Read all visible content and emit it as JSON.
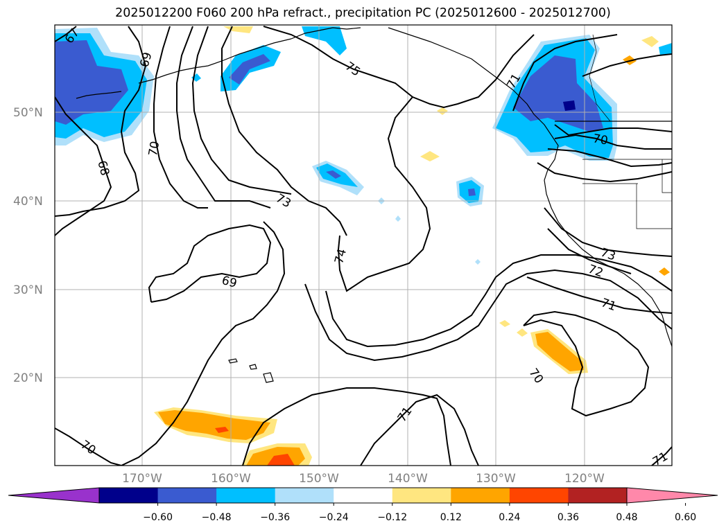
{
  "title": "2025012200 F060 200 hPa refract., precipitation PC (2025012600 - 2025012700)",
  "lat_labels": [
    "50°N",
    "40°N",
    "30°N",
    "20°N"
  ],
  "lon_labels": [
    "170°W",
    "160°W",
    "150°W",
    "140°W",
    "130°W",
    "120°W"
  ],
  "contour_labels": [
    "67",
    "69",
    "68",
    "70",
    "75",
    "71",
    "73",
    "74",
    "69",
    "70",
    "73",
    "72",
    "71",
    "70",
    "71",
    "70",
    "71"
  ],
  "colorbar": {
    "ticks": [
      "−0.60",
      "−0.48",
      "−0.36",
      "−0.24",
      "−0.12",
      "0.12",
      "0.24",
      "0.36",
      "0.48",
      "0.60"
    ],
    "colors": [
      "#9932cc",
      "#00008b",
      "#3a5bd0",
      "#00bfff",
      "#b0e0fa",
      "#ffffff",
      "#ffe680",
      "#ffa500",
      "#ff4500",
      "#b22222",
      "#ff88aa"
    ]
  },
  "colors": {
    "blue_light": "#b0e0fa",
    "blue_mid": "#00bfff",
    "blue_dark": "#3a5bd0",
    "navy": "#00008b",
    "yellow": "#ffe680",
    "orange": "#ffa500",
    "red": "#ff4500"
  }
}
